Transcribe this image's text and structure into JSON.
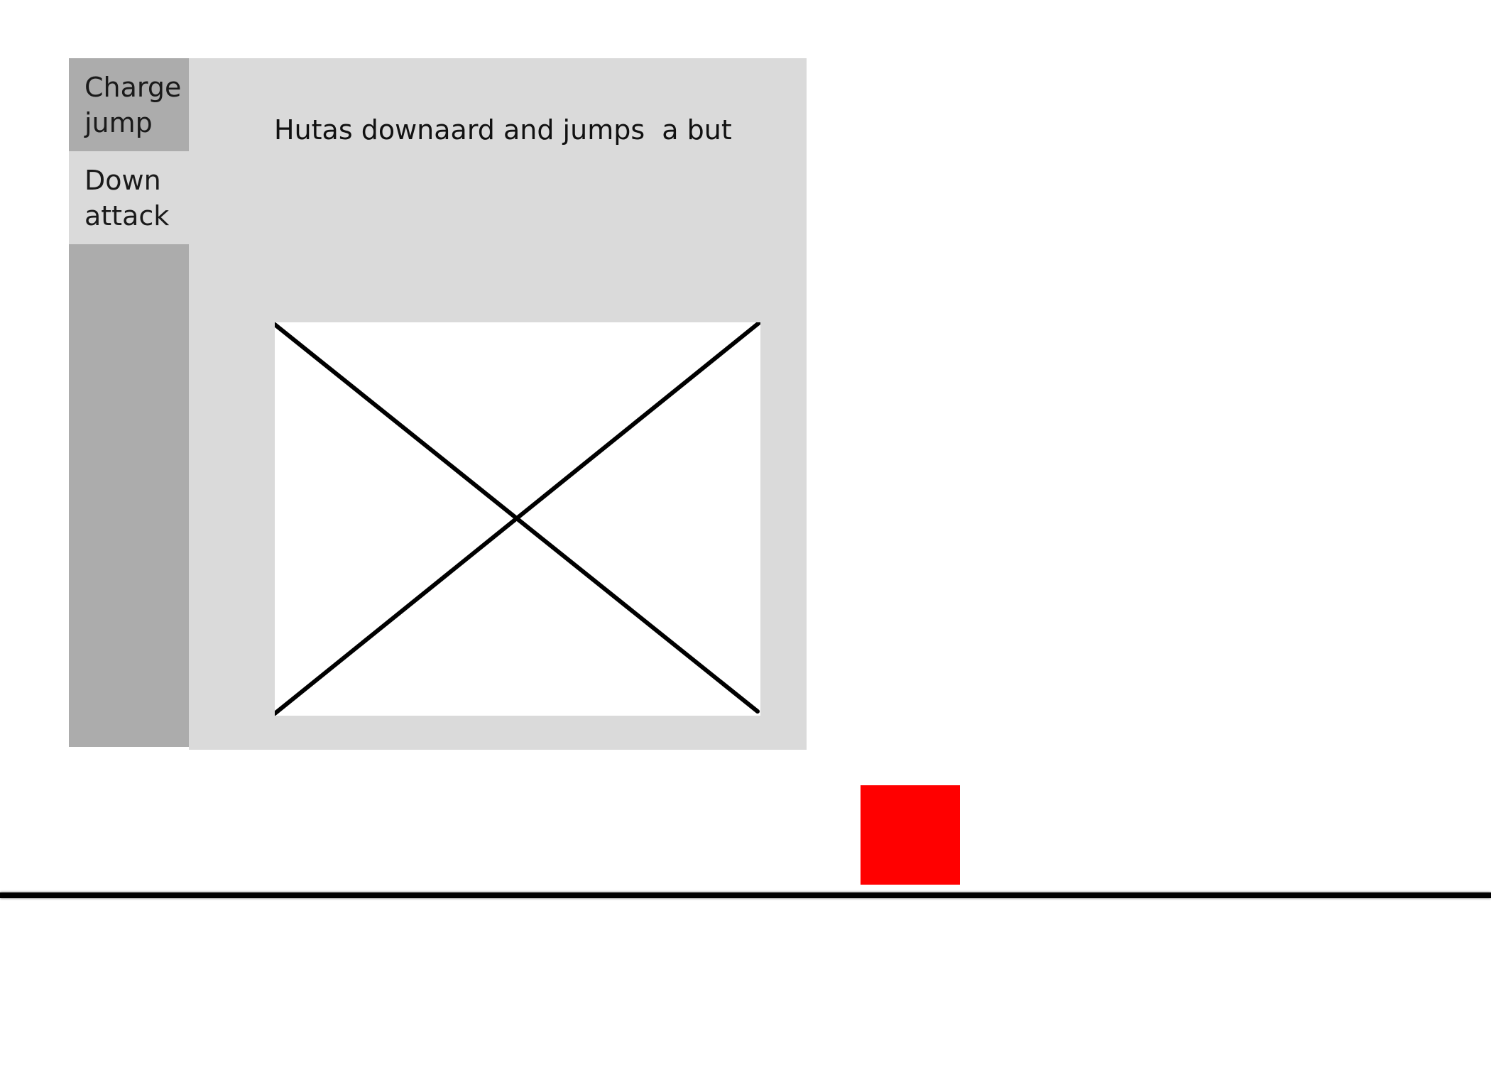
{
  "move_menu": {
    "tabs": [
      {
        "label": "Charge\njump",
        "active": false
      },
      {
        "label": "Down\nattack",
        "active": true
      }
    ]
  },
  "detail": {
    "description": "Hutas downaard and jumps  a but",
    "preview_icon": "image-placeholder-icon"
  },
  "colors": {
    "sidebar": "#acacac",
    "panel": "#dadada",
    "enemy": "#ff0000",
    "ground": "#000000"
  }
}
